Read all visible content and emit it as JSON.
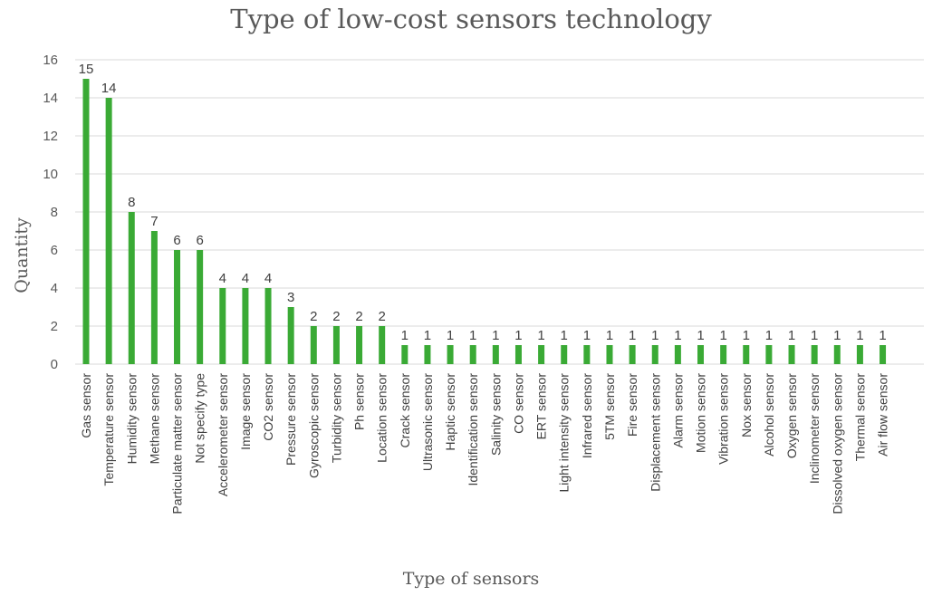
{
  "chart_data": {
    "type": "bar",
    "title": "Type of low-cost sensors technology",
    "xlabel": "Type of sensors",
    "ylabel": "Quantity",
    "ylim": [
      0,
      16
    ],
    "yticks": [
      0,
      2,
      4,
      6,
      8,
      10,
      12,
      14,
      16
    ],
    "grid": true,
    "legend": "none",
    "bar_color": "#3aaa35",
    "grid_color": "#d9d9d9",
    "categories": [
      "Gas sensor",
      "Temperature sensor",
      "Humidity sensor",
      "Methane sensor",
      "Particulate matter sensor",
      "Not specify type",
      "Accelerometer sensor",
      "Image sensor",
      "CO2 sensor",
      "Pressure sensor",
      "Gyroscopic sensor",
      "Turbidity sensor",
      "Ph sensor",
      "Location sensor",
      "Crack sensor",
      "Ultrasonic sensor",
      "Haptic sensor",
      "Identification sensor",
      "Salinity sensor",
      "CO sensor",
      "ERT sensor",
      "Light intensity sensor",
      "Infrared sensor",
      "5TM sensor",
      "Fire sensor",
      "Displacement sensor",
      "Alarm sensor",
      "Motion sensor",
      "Vibration sensor",
      "Nox sensor",
      "Alcohol sensor",
      "Oxygen sensor",
      "Inclinometer sensor",
      "Dissolved oxygen sensor",
      "Thermal sensor",
      "Air flow sensor"
    ],
    "values": [
      15,
      14,
      8,
      7,
      6,
      6,
      4,
      4,
      4,
      3,
      2,
      2,
      2,
      2,
      1,
      1,
      1,
      1,
      1,
      1,
      1,
      1,
      1,
      1,
      1,
      1,
      1,
      1,
      1,
      1,
      1,
      1,
      1,
      1,
      1,
      1
    ]
  }
}
